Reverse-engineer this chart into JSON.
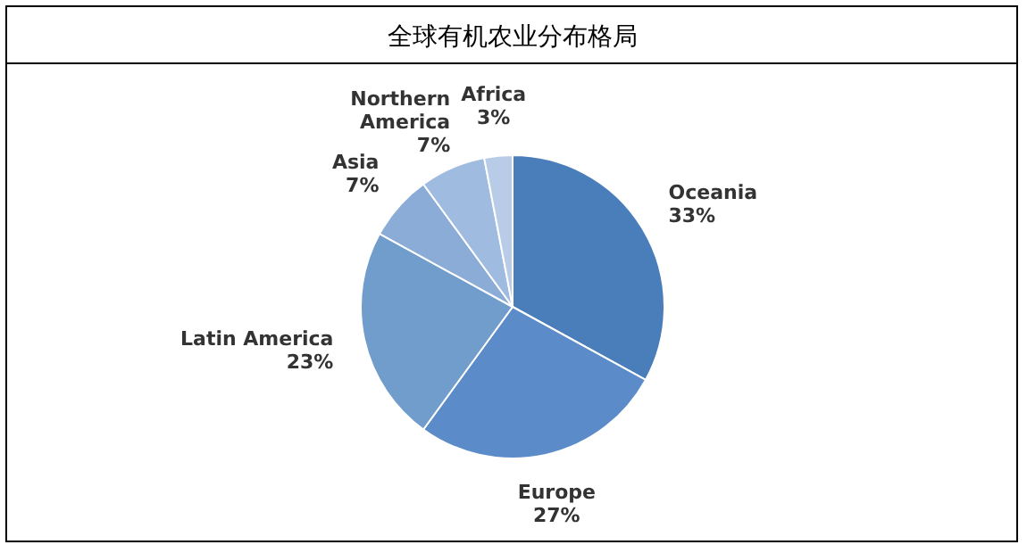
{
  "chart_data": {
    "type": "pie",
    "title": "全球有机农业分布格局",
    "categories": [
      "Oceania",
      "Europe",
      "Latin America",
      "Asia",
      "Northern America",
      "Africa"
    ],
    "values": [
      33,
      27,
      23,
      7,
      7,
      3
    ],
    "colors": [
      "#4a7ebb",
      "#5b8bc8",
      "#709dcc",
      "#8aacd6",
      "#a0bbe0",
      "#b8cce8"
    ],
    "value_labels": [
      "33%",
      "27%",
      "23%",
      "7%",
      "7%",
      "3%"
    ]
  }
}
